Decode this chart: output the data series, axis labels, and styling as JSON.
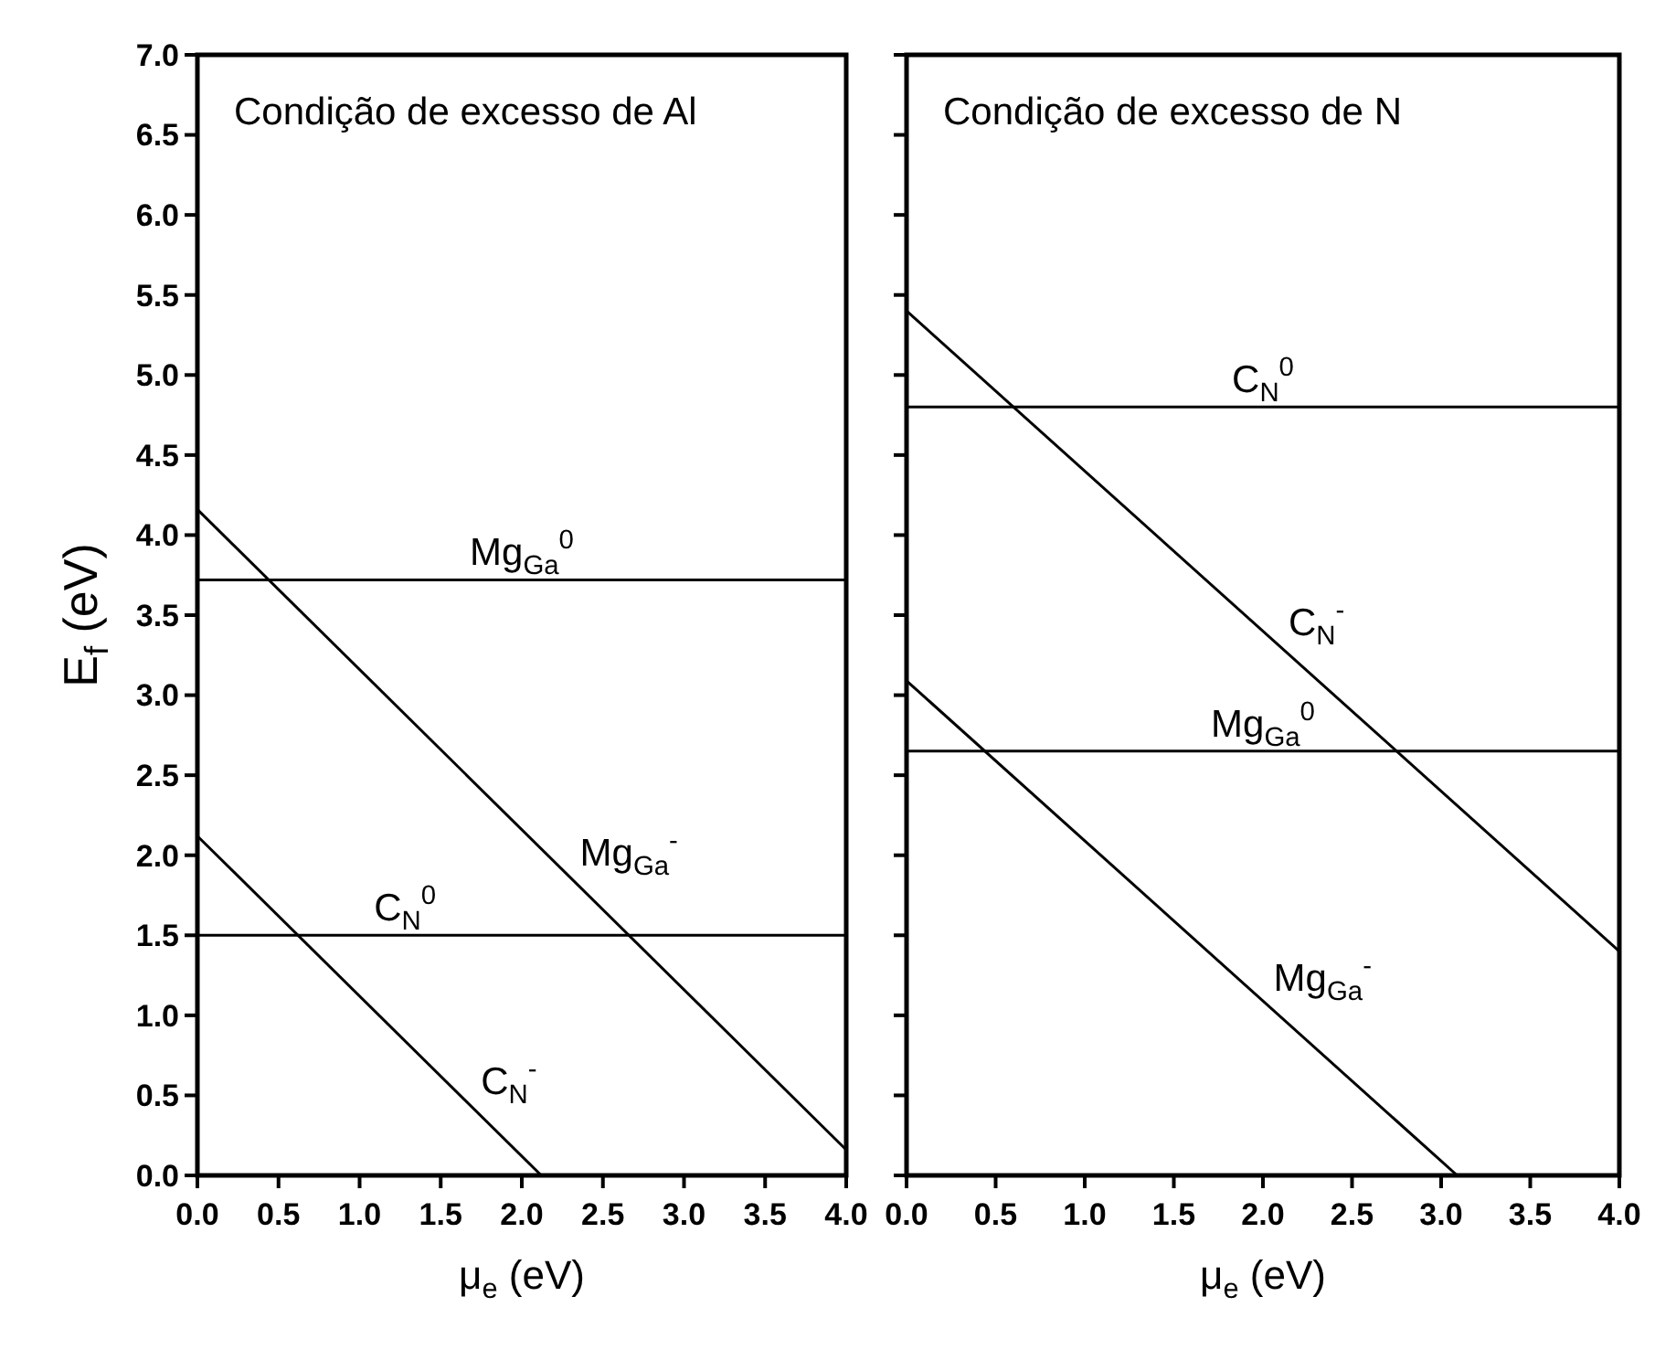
{
  "chart_data": [
    {
      "type": "line",
      "title": "Condição de excesso de Al",
      "xlabel": "μ$_{e}$ (eV)",
      "ylabel": "E$_{f}$ (eV)",
      "xlim": [
        0,
        4
      ],
      "xticks": [
        {
          "value": 0,
          "label": "0.0"
        },
        {
          "value": 0.5,
          "label": "0.5"
        },
        {
          "value": 1,
          "label": "1.0"
        },
        {
          "value": 1.5,
          "label": "1.5"
        },
        {
          "value": 2,
          "label": "2.0"
        },
        {
          "value": 2.5,
          "label": "2.5"
        },
        {
          "value": 3,
          "label": "3.0"
        },
        {
          "value": 3.5,
          "label": "3.5"
        },
        {
          "value": 4,
          "label": "4.0"
        }
      ],
      "ylim": [
        0,
        7
      ],
      "yticks": [
        {
          "value": 0,
          "label": "0.0"
        },
        {
          "value": 0.5,
          "label": "0.5"
        },
        {
          "value": 1,
          "label": "1.0"
        },
        {
          "value": 1.5,
          "label": "1.5"
        },
        {
          "value": 2,
          "label": "2.0"
        },
        {
          "value": 2.5,
          "label": "2.5"
        },
        {
          "value": 3,
          "label": "3.0"
        },
        {
          "value": 3.5,
          "label": "3.5"
        },
        {
          "value": 4,
          "label": "4.0"
        },
        {
          "value": 4.5,
          "label": "4.5"
        },
        {
          "value": 5,
          "label": "5.0"
        },
        {
          "value": 5.5,
          "label": "5.5"
        },
        {
          "value": 6,
          "label": "6.0"
        },
        {
          "value": 6.5,
          "label": "6.5"
        },
        {
          "value": 7,
          "label": "7.0"
        }
      ],
      "grid": false,
      "marker": "none",
      "line_style": "solid",
      "series": [
        {
          "name": "Mg$_{Ga}$$^{0}$",
          "color": "#000000",
          "x": [
            0,
            4
          ],
          "values": [
            3.72,
            3.72
          ]
        },
        {
          "name": "Mg$_{Ga}$$^{-}$",
          "color": "#000000",
          "x": [
            0,
            4
          ],
          "values": [
            4.16,
            0.16
          ]
        },
        {
          "name": "C$_{N}$$^{0}$",
          "color": "#000000",
          "x": [
            0,
            4
          ],
          "values": [
            1.5,
            1.5
          ]
        },
        {
          "name": "C$_{N}$$^{-}$",
          "color": "#000000",
          "x": [
            0,
            2.12
          ],
          "values": [
            2.12,
            0
          ]
        }
      ]
    },
    {
      "type": "line",
      "title": "Condição de excesso de N",
      "xlabel": "μ$_{e}$ (eV)",
      "xlim": [
        0,
        4
      ],
      "xticks": [
        {
          "value": 0,
          "label": "0.0"
        },
        {
          "value": 0.5,
          "label": "0.5"
        },
        {
          "value": 1,
          "label": "1.0"
        },
        {
          "value": 1.5,
          "label": "1.5"
        },
        {
          "value": 2,
          "label": "2.0"
        },
        {
          "value": 2.5,
          "label": "2.5"
        },
        {
          "value": 3,
          "label": "3.0"
        },
        {
          "value": 3.5,
          "label": "3.5"
        },
        {
          "value": 4,
          "label": "4.0"
        }
      ],
      "ylim": [
        0,
        7
      ],
      "yticks": [
        {
          "value": 0,
          "label": null
        },
        {
          "value": 0.5,
          "label": null
        },
        {
          "value": 1,
          "label": null
        },
        {
          "value": 1.5,
          "label": null
        },
        {
          "value": 2,
          "label": null
        },
        {
          "value": 2.5,
          "label": null
        },
        {
          "value": 3,
          "label": null
        },
        {
          "value": 3.5,
          "label": null
        },
        {
          "value": 4,
          "label": null
        },
        {
          "value": 4.5,
          "label": null
        },
        {
          "value": 5,
          "label": null
        },
        {
          "value": 5.5,
          "label": null
        },
        {
          "value": 6,
          "label": null
        },
        {
          "value": 6.5,
          "label": null
        },
        {
          "value": 7,
          "label": null
        }
      ],
      "tick_labels": "x",
      "grid": false,
      "marker": "none",
      "line_style": "solid",
      "series": [
        {
          "name": "C$_{N}$$^{0}$",
          "color": "#000000",
          "x": [
            0,
            4
          ],
          "values": [
            4.8,
            4.8
          ]
        },
        {
          "name": "C$_{N}$$^{-}$",
          "color": "#000000",
          "x": [
            0,
            4
          ],
          "values": [
            5.4,
            1.4
          ]
        },
        {
          "name": "Mg$_{Ga}$$^{0}$",
          "color": "#000000",
          "x": [
            0,
            4
          ],
          "values": [
            2.65,
            2.65
          ]
        },
        {
          "name": "Mg$_{Ga}$$^{-}$",
          "color": "#000000",
          "x": [
            0,
            3.09
          ],
          "values": [
            3.09,
            0
          ]
        }
      ]
    }
  ]
}
